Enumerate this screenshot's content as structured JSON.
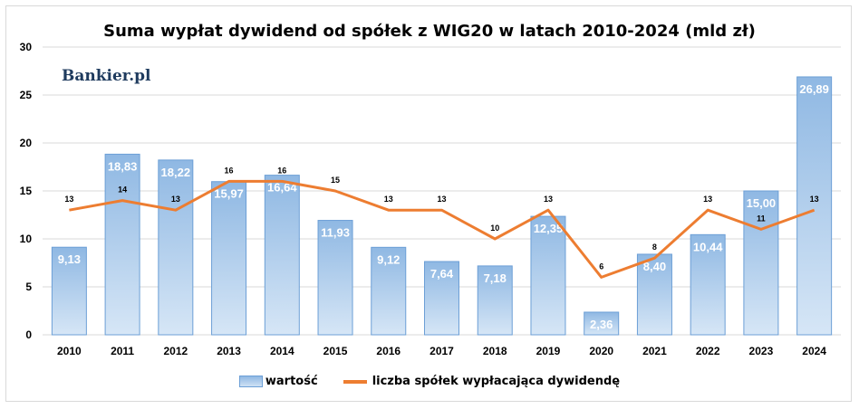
{
  "chart_data": {
    "type": "bar",
    "title": "Suma wypłat dywidend od spółek z WIG20 w latach 2010-2024 (mld zł)",
    "categories": [
      "2010",
      "2011",
      "2012",
      "2013",
      "2014",
      "2015",
      "2016",
      "2017",
      "2018",
      "2019",
      "2020",
      "2021",
      "2022",
      "2023",
      "2024"
    ],
    "series": [
      {
        "name": "wartość",
        "type": "bar",
        "values": [
          9.13,
          18.83,
          18.22,
          15.97,
          16.64,
          11.93,
          9.12,
          7.64,
          7.18,
          12.35,
          2.36,
          8.4,
          10.44,
          15.0,
          26.89
        ],
        "labels": [
          "9,13",
          "18,83",
          "18,22",
          "15,97",
          "16,64",
          "11,93",
          "9,12",
          "7,64",
          "7,18",
          "12,35",
          "2,36",
          "8,40",
          "10,44",
          "15,00",
          "26,89"
        ],
        "color": "#9dc3e6"
      },
      {
        "name": "liczba spółek wypłacająca dywidendę",
        "type": "line",
        "values": [
          13,
          14,
          13,
          16,
          16,
          15,
          13,
          13,
          10,
          13,
          6,
          8,
          13,
          11,
          13
        ],
        "color": "#ed7d31"
      }
    ],
    "ylim": [
      0,
      30
    ],
    "yticks": [
      "0",
      "5",
      "10",
      "15",
      "20",
      "25",
      "30"
    ],
    "grid": true,
    "legend_position": "bottom"
  },
  "logo_text": "Bankier.pl"
}
